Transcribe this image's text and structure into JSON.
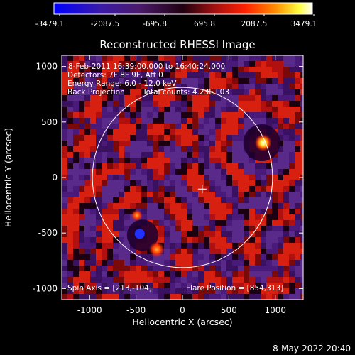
{
  "colorbar": {
    "tick_labels": [
      "-3479.1",
      "-2087.5",
      "-695.8",
      "695.8",
      "2087.5",
      "3479.1"
    ],
    "range": [
      -3479.1,
      3479.1
    ]
  },
  "image": {
    "title": "Reconstructed RHESSI Image",
    "time_range": "8-Feb-2011 16:39:00.000 to 16:40:24.000",
    "detectors": "Detectors: 7F 8F 9F, Att 0",
    "energy_range": "Energy Range: 6.0 - 12.0 keV",
    "method": "Back Projection",
    "total_counts": "Total counts: 4.23E+03",
    "spin_axis": "Spin Axis = [213,-104]",
    "flare_position": "Flare Position = [854,313]",
    "xlabel": "Heliocentric X (arcsec)",
    "ylabel": "Heliocentric Y (arcsec)",
    "xlim": [
      -1300,
      1300
    ],
    "ylim": [
      -1100,
      1100
    ],
    "x_ticks": [
      "-1000",
      "-500",
      "0",
      "500",
      "1000"
    ],
    "y_ticks": [
      "-1000",
      "-500",
      "0",
      "500",
      "1000"
    ],
    "solar_radius_arcsec": 970,
    "sources": [
      {
        "x": 854,
        "y": 313,
        "type": "bright"
      },
      {
        "x": -430,
        "y": -520,
        "type": "bright"
      }
    ],
    "colors": {
      "background": "#000000",
      "limb": "#ffffff",
      "axes": "#ffffff"
    }
  },
  "footer": {
    "timestamp": "8-May-2022 20:40"
  }
}
